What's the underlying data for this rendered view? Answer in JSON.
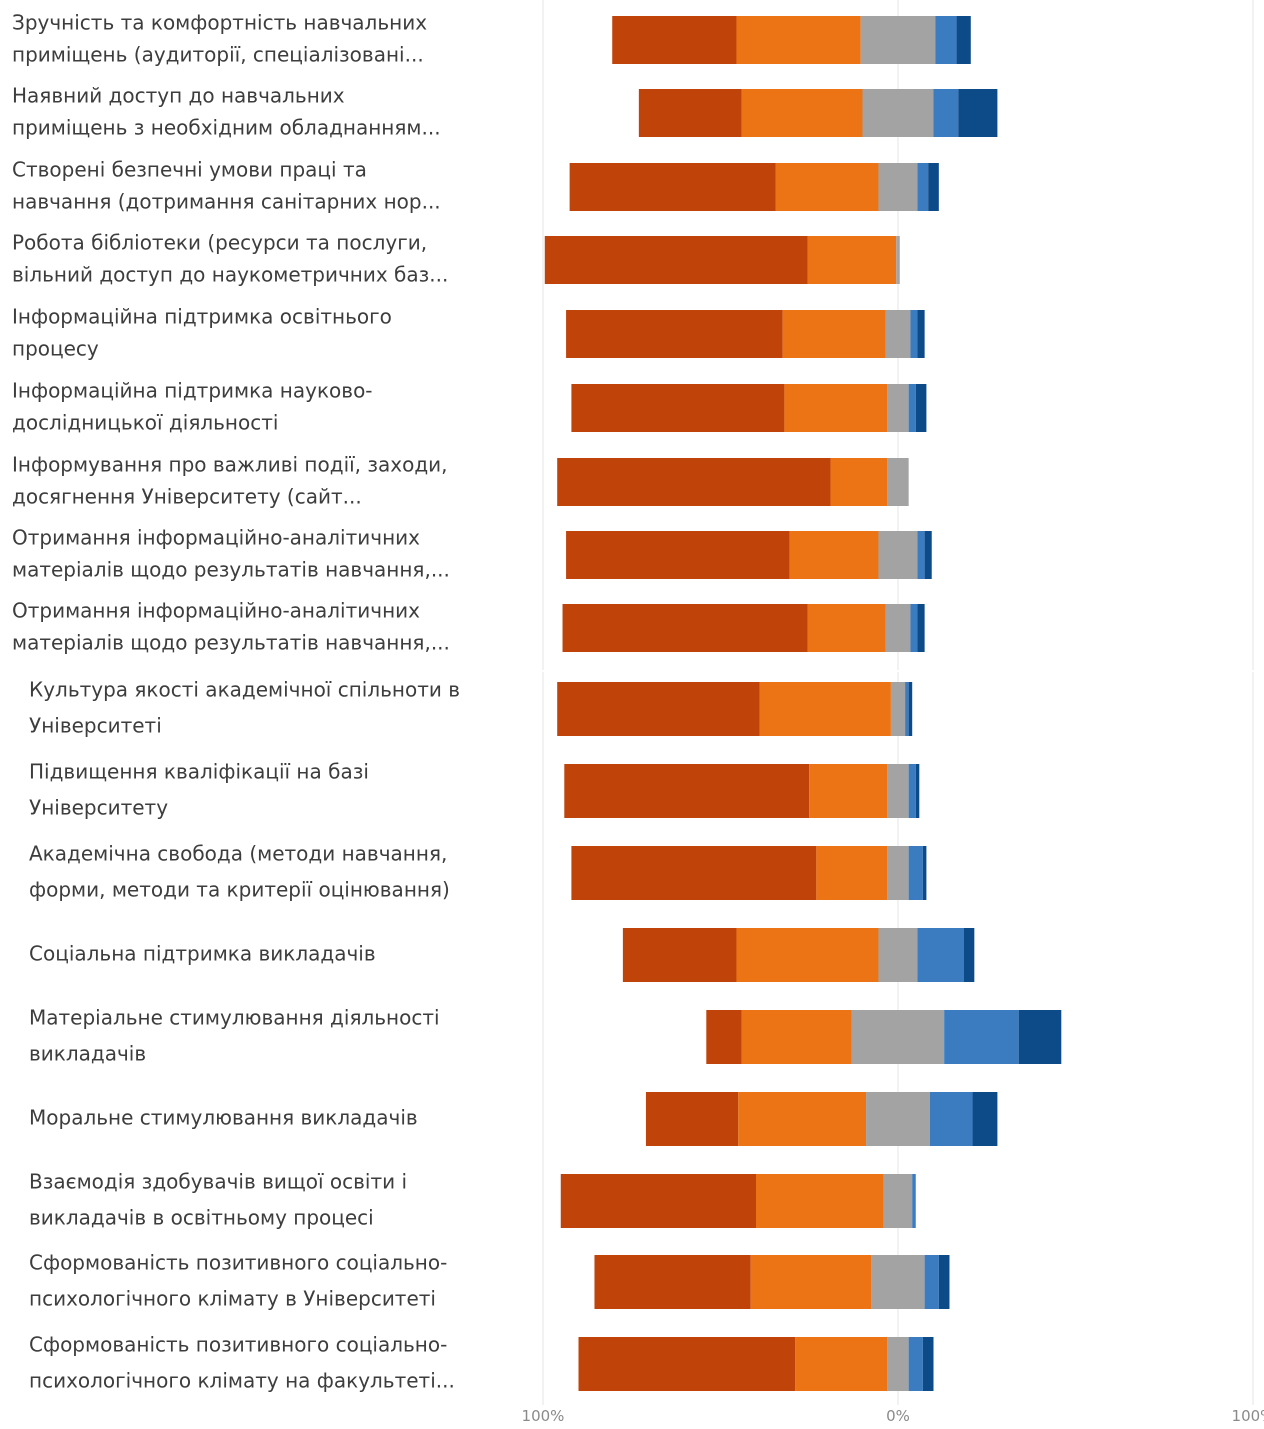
{
  "chart_data": {
    "type": "bar",
    "orientation": "horizontal",
    "stacked": "diverging",
    "charts": [
      {
        "categories": [
          [
            "Зручність та комфортність навчальних",
            "приміщень (аудиторії, спеціалізовані..."
          ],
          [
            "Наявний доступ до навчальних",
            "приміщень з необхідним обладнанням..."
          ],
          [
            "Створені безпечні умови праці та",
            "навчання (дотримання санітарних нор..."
          ],
          [
            "Робота бібліотеки (ресурси та послуги,",
            "вільний доступ до наукометричних баз..."
          ],
          [
            "Інформаційна підтримка освітнього",
            "процесу"
          ],
          [
            "Інформаційна підтримка науково-",
            "дослідницької діяльності"
          ],
          [
            "Інформування про важливі події, заходи,",
            "досягнення Університету (сайт..."
          ],
          [
            "Отримання інформаційно-аналітичних",
            "матеріалів щодо результатів навчання,..."
          ],
          [
            "Отримання інформаційно-аналітичних",
            "матеріалів щодо результатів навчання,..."
          ]
        ],
        "series": [
          {
            "color": "#c0440a",
            "values": [
              35,
              29,
              58,
              74,
              61,
              60,
              77,
              63,
              69
            ]
          },
          {
            "color": "#ec7414",
            "values": [
              35,
              34,
              29,
              25,
              29,
              29,
              16,
              25,
              22
            ]
          },
          {
            "color": "#a3a3a3",
            "values": [
              21,
              20,
              11,
              1,
              7,
              6,
              6,
              11,
              7
            ]
          },
          {
            "color": "#3b7cc0",
            "values": [
              6,
              7,
              3,
              0,
              2,
              2,
              0,
              2,
              2
            ]
          },
          {
            "color": "#0d4a88",
            "values": [
              4,
              11,
              3,
              0,
              2,
              3,
              0,
              2,
              2
            ]
          }
        ]
      },
      {
        "categories": [
          [
            "Культура якості академічної спільноти в",
            "Університеті"
          ],
          [
            "Підвищення кваліфікації на базі",
            "Університету"
          ],
          [
            "Академічна свобода (методи навчання,",
            "форми, методи та критерії оцінювання)"
          ],
          [
            "Соціальна підтримка викладачів"
          ],
          [
            "Матеріальне стимулювання діяльності",
            "викладачів"
          ],
          [
            "Моральне стимулювання викладачів"
          ],
          [
            "Взаємодія здобувачів вищої освіти і",
            "викладачів в освітньому процесі"
          ],
          [
            "Сформованість позитивного соціально-",
            "психологічного клімату в Університеті"
          ],
          [
            "Сформованість позитивного соціально-",
            "психологічного клімату на факультеті..."
          ]
        ],
        "series": [
          {
            "color": "#c0440a",
            "values": [
              57,
              69,
              69,
              32,
              10,
              26,
              55,
              44,
              61
            ]
          },
          {
            "color": "#ec7414",
            "values": [
              37,
              22,
              20,
              40,
              31,
              36,
              36,
              34,
              26
            ]
          },
          {
            "color": "#a3a3a3",
            "values": [
              4,
              6,
              6,
              11,
              26,
              18,
              8,
              15,
              6
            ]
          },
          {
            "color": "#3b7cc0",
            "values": [
              1,
              2,
              4,
              13,
              21,
              12,
              1,
              4,
              4
            ]
          },
          {
            "color": "#0d4a88",
            "values": [
              1,
              1,
              1,
              3,
              12,
              7,
              0,
              3,
              3
            ]
          }
        ]
      }
    ],
    "xticks": [
      "100%",
      "0%",
      "100%"
    ],
    "xlim": [
      -100,
      100
    ],
    "grid": true,
    "legend": "none"
  }
}
